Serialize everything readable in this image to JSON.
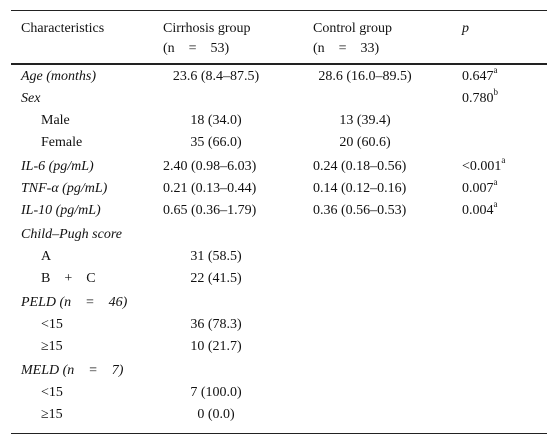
{
  "headers": {
    "characteristics": "Characteristics",
    "cirrhosis": "Cirrhosis group",
    "cirrhosis_n": "(n = 53)",
    "control": "Control group",
    "control_n": "(n = 33)",
    "p": "p"
  },
  "rows": [
    {
      "label": "Age (months)",
      "cirrhosis": "23.6 (8.4–87.5)",
      "control": "28.6 (16.0–89.5)",
      "p": "0.647",
      "p_sup": "a"
    },
    {
      "label": "Sex",
      "cirrhosis": "",
      "control": "",
      "p": "0.780",
      "p_sup": "b"
    },
    {
      "label": "Male",
      "cirrhosis": "18 (34.0)",
      "control": "13 (39.4)",
      "p": "",
      "p_sup": ""
    },
    {
      "label": "Female",
      "cirrhosis": "35 (66.0)",
      "control": "20 (60.6)",
      "p": "",
      "p_sup": ""
    },
    {
      "label": "IL-6 (pg/mL)",
      "cirrhosis": "2.40 (0.98–6.03)",
      "control": "0.24 (0.18–0.56)",
      "p": "<0.001",
      "p_sup": "a"
    },
    {
      "label": "TNF-α (pg/mL)",
      "cirrhosis": "0.21 (0.13–0.44)",
      "control": "0.14 (0.12–0.16)",
      "p": "0.007",
      "p_sup": "a"
    },
    {
      "label": "IL-10 (pg/mL)",
      "cirrhosis": "0.65 (0.36–1.79)",
      "control": "0.36 (0.56–0.53)",
      "p": "0.004",
      "p_sup": "a"
    },
    {
      "label": "Child–Pugh score",
      "cirrhosis": "",
      "control": "",
      "p": "",
      "p_sup": ""
    },
    {
      "label": "A",
      "cirrhosis": "31 (58.5)",
      "control": "",
      "p": "",
      "p_sup": ""
    },
    {
      "label": "B + C",
      "cirrhosis": "22 (41.5)",
      "control": "",
      "p": "",
      "p_sup": ""
    },
    {
      "label": "PELD (n = 46)",
      "cirrhosis": "",
      "control": "",
      "p": "",
      "p_sup": ""
    },
    {
      "label": "<15",
      "cirrhosis": "36 (78.3)",
      "control": "",
      "p": "",
      "p_sup": ""
    },
    {
      "label": "≥15",
      "cirrhosis": "10 (21.7)",
      "control": "",
      "p": "",
      "p_sup": ""
    },
    {
      "label": "MELD (n = 7)",
      "cirrhosis": "",
      "control": "",
      "p": "",
      "p_sup": ""
    },
    {
      "label": "<15",
      "cirrhosis": "7 (100.0)",
      "control": "",
      "p": "",
      "p_sup": ""
    },
    {
      "label": "≥15",
      "cirrhosis": "0 (0.0)",
      "control": "",
      "p": "",
      "p_sup": ""
    }
  ]
}
